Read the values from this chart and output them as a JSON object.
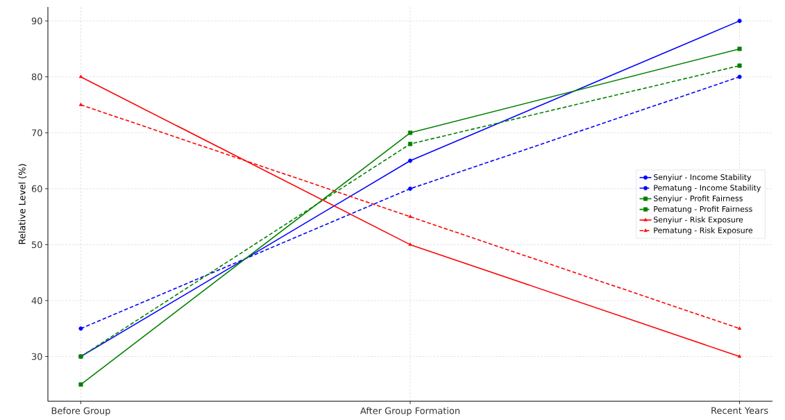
{
  "chart_data": {
    "type": "line",
    "ylabel": "Relative Level (%)",
    "categories": [
      "Before Group",
      "After Group Formation",
      "Recent Years"
    ],
    "ylim": [
      22,
      92.5
    ],
    "yticks": [
      30,
      40,
      50,
      60,
      70,
      80,
      90
    ],
    "grid": true,
    "legend": "right",
    "series": [
      {
        "name": "Senyiur - Income Stability",
        "color": "#0000ff",
        "values": [
          30,
          65,
          90
        ],
        "marker": "circle",
        "line_style": "solid"
      },
      {
        "name": "Pematung - Income Stability",
        "color": "#0000ff",
        "values": [
          35,
          60,
          80
        ],
        "marker": "circle",
        "line_style": "dashed"
      },
      {
        "name": "Senyiur - Profit Fairness",
        "color": "#008000",
        "values": [
          25,
          70,
          85
        ],
        "marker": "square",
        "line_style": "solid"
      },
      {
        "name": "Pematung - Profit Fairness",
        "color": "#008000",
        "values": [
          30,
          68,
          82
        ],
        "marker": "square",
        "line_style": "dashed"
      },
      {
        "name": "Senyiur - Risk Exposure",
        "color": "#ff0000",
        "values": [
          80,
          50,
          30
        ],
        "marker": "triangle",
        "line_style": "solid"
      },
      {
        "name": "Pematung - Risk Exposure",
        "color": "#ff0000",
        "values": [
          75,
          55,
          35
        ],
        "marker": "triangle",
        "line_style": "dashed"
      }
    ]
  }
}
